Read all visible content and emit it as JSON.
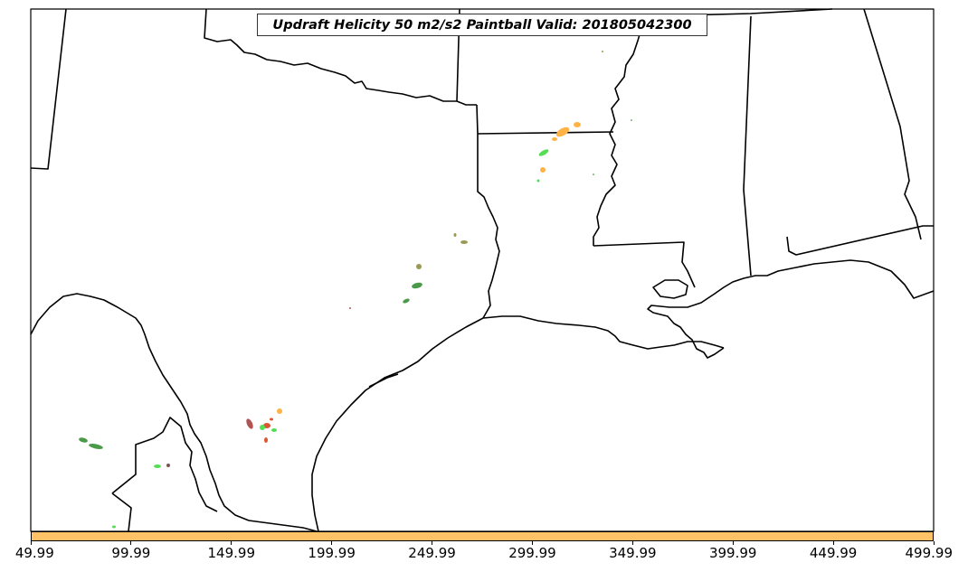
{
  "title": "Updraft Helicity 50 m2/s2 Paintball Valid: 201805042300",
  "colorbar": {
    "color": "#ffc266",
    "ticks": [
      "49.99",
      "99.99",
      "149.99",
      "199.99",
      "249.99",
      "299.99",
      "349.99",
      "399.99",
      "449.99",
      "499.99"
    ]
  },
  "colors": {
    "orange": "#ffb347",
    "green": "#55dd55",
    "dark_green": "#4a9a4a",
    "olive": "#9a9a55",
    "brown_red": "#b05555",
    "red": "#dd5533"
  }
}
